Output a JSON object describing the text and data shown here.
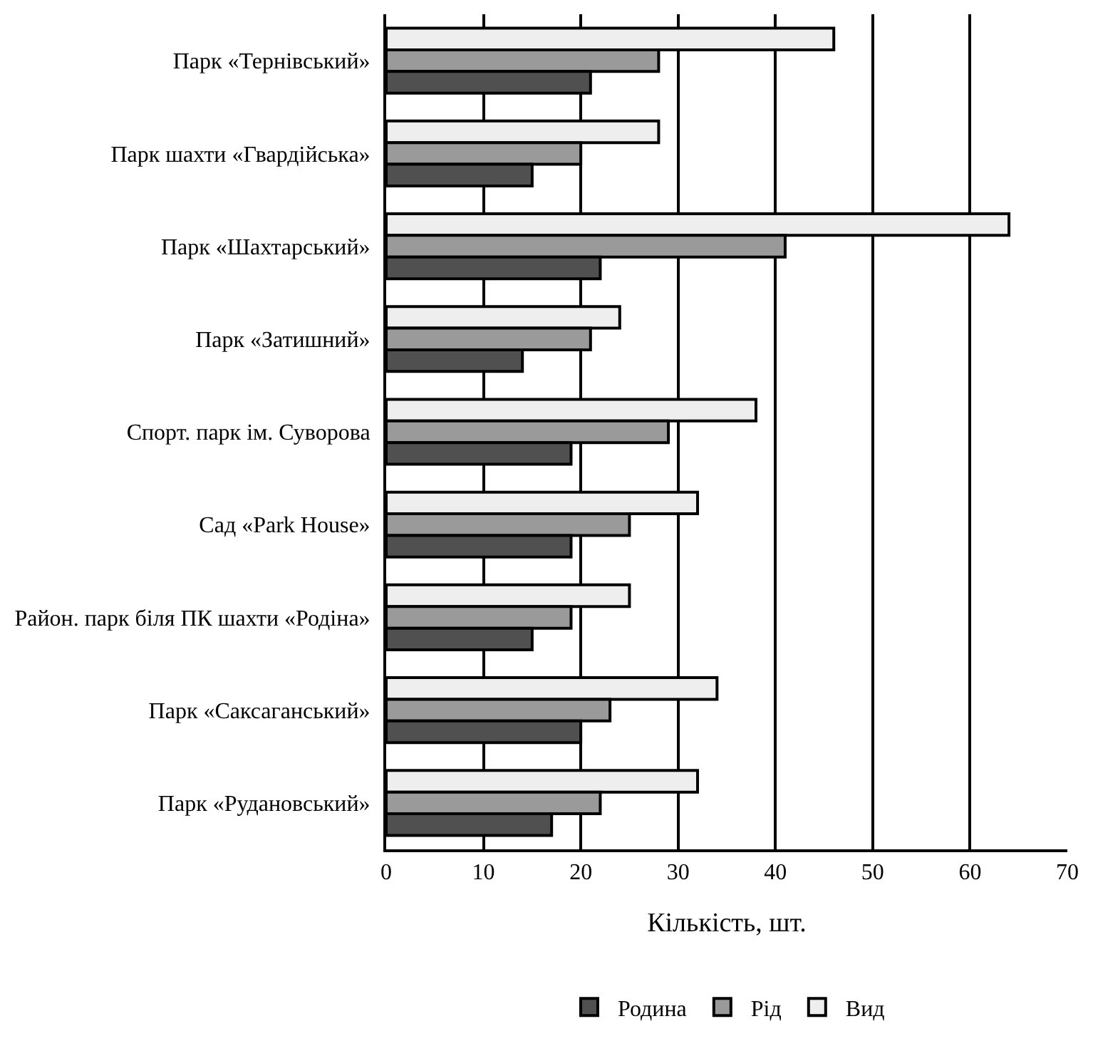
{
  "chart_data": {
    "type": "bar",
    "orientation": "horizontal",
    "xlabel": "Кількість, шт.",
    "categories": [
      "Парк «Тернівський»",
      "Парк шахти «Гвардійська»",
      "Парк «Шахтарський»",
      "Парк «Затишний»",
      "Спорт. парк ім. Суворова",
      "Сад «Park House»",
      "Район. парк біля ПК шахти «Родіна»",
      "Парк «Саксаганський»",
      "Парк «Рудановський»"
    ],
    "series": [
      {
        "name": "Родина",
        "color": "#505050",
        "values": [
          21,
          15,
          22,
          14,
          19,
          19,
          15,
          20,
          17
        ]
      },
      {
        "name": "Рід",
        "color": "#9a9a9a",
        "values": [
          28,
          20,
          41,
          21,
          29,
          25,
          19,
          23,
          22
        ]
      },
      {
        "name": "Вид",
        "color": "#eeeeee",
        "values": [
          46,
          28,
          64,
          24,
          38,
          32,
          25,
          34,
          32
        ]
      }
    ],
    "xlim": [
      0,
      70
    ],
    "xticks": [
      0,
      10,
      20,
      30,
      40,
      50,
      60,
      70
    ],
    "grid": "x",
    "legend": "bottom"
  }
}
